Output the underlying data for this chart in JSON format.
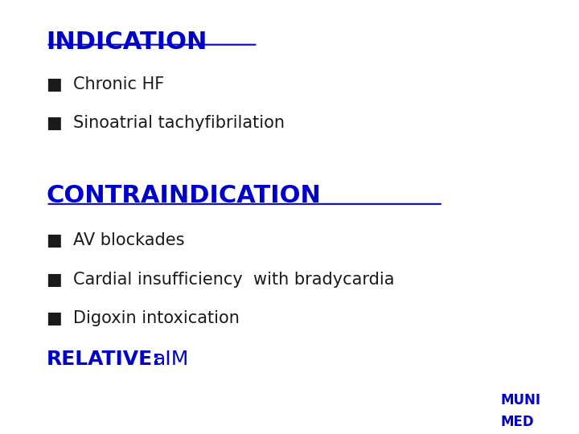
{
  "background_color": "#ffffff",
  "blue_color": "#0000CC",
  "black_color": "#1a1a1a",
  "indication_title": "INDICATION",
  "indication_bullets": [
    "Chronic HF",
    "Sinoatrial tachyfibrilation"
  ],
  "contraindication_title": "CONTRAINDICATION",
  "contraindication_bullets": [
    "AV blockades",
    "Cardial insufficiency  with bradycardia",
    "Digoxin intoxication"
  ],
  "relative_label": "RELATIVE:",
  "relative_value": "aIM",
  "muni_line1": "MUNI",
  "muni_line2": "MED",
  "title_fontsize": 22,
  "bullet_fontsize": 15,
  "relative_fontsize": 18,
  "muni_fontsize": 12
}
